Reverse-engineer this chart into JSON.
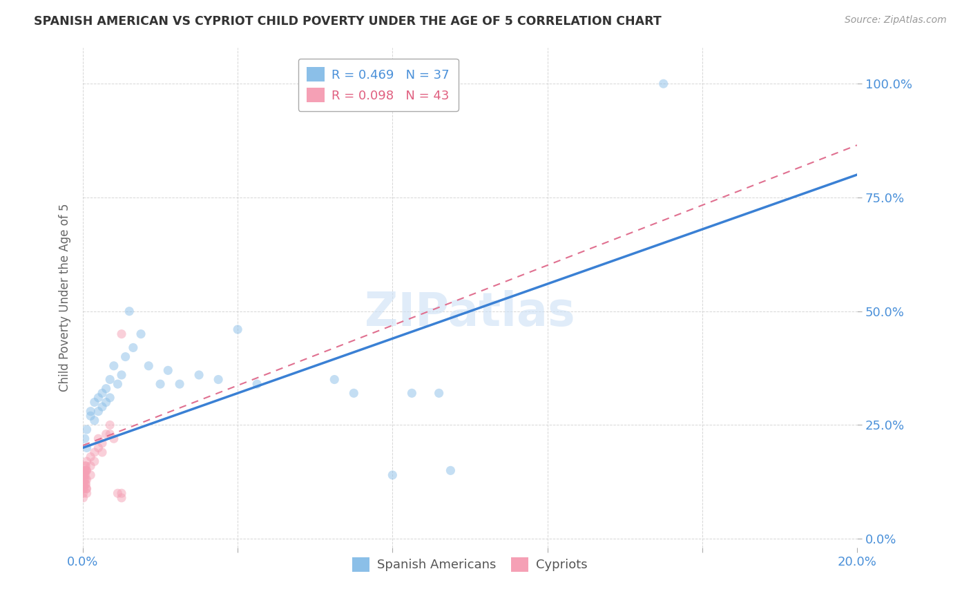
{
  "title": "SPANISH AMERICAN VS CYPRIOT CHILD POVERTY UNDER THE AGE OF 5 CORRELATION CHART",
  "source": "Source: ZipAtlas.com",
  "ylabel": "Child Poverty Under the Age of 5",
  "xlim": [
    0.0,
    0.2
  ],
  "ylim": [
    -0.02,
    1.08
  ],
  "ytick_labels": [
    "0.0%",
    "25.0%",
    "50.0%",
    "75.0%",
    "100.0%"
  ],
  "ytick_positions": [
    0.0,
    0.25,
    0.5,
    0.75,
    1.0
  ],
  "watermark": "ZIPatlas",
  "spanish_americans": {
    "x": [
      0.0005,
      0.001,
      0.001,
      0.002,
      0.002,
      0.003,
      0.003,
      0.004,
      0.004,
      0.005,
      0.005,
      0.006,
      0.006,
      0.007,
      0.007,
      0.008,
      0.009,
      0.01,
      0.011,
      0.012,
      0.013,
      0.015,
      0.017,
      0.02,
      0.022,
      0.025,
      0.03,
      0.035,
      0.04,
      0.045,
      0.065,
      0.07,
      0.08,
      0.085,
      0.092,
      0.095,
      0.15
    ],
    "y": [
      0.22,
      0.2,
      0.24,
      0.27,
      0.28,
      0.26,
      0.3,
      0.28,
      0.31,
      0.29,
      0.32,
      0.3,
      0.33,
      0.31,
      0.35,
      0.38,
      0.34,
      0.36,
      0.4,
      0.5,
      0.42,
      0.45,
      0.38,
      0.34,
      0.37,
      0.34,
      0.36,
      0.35,
      0.46,
      0.34,
      0.35,
      0.32,
      0.14,
      0.32,
      0.32,
      0.15,
      1.0
    ],
    "color": "#8bbfe8",
    "R": 0.469,
    "N": 37
  },
  "cypriots": {
    "x": [
      0.0001,
      0.0001,
      0.0001,
      0.0001,
      0.0002,
      0.0002,
      0.0002,
      0.0003,
      0.0003,
      0.0004,
      0.0004,
      0.0005,
      0.0005,
      0.0006,
      0.0006,
      0.0007,
      0.0007,
      0.0008,
      0.0008,
      0.0009,
      0.0009,
      0.001,
      0.001,
      0.001,
      0.001,
      0.001,
      0.002,
      0.002,
      0.002,
      0.003,
      0.003,
      0.004,
      0.004,
      0.005,
      0.005,
      0.006,
      0.007,
      0.007,
      0.008,
      0.009,
      0.01,
      0.01,
      0.01
    ],
    "y": [
      0.12,
      0.11,
      0.1,
      0.09,
      0.14,
      0.13,
      0.12,
      0.15,
      0.11,
      0.14,
      0.13,
      0.16,
      0.15,
      0.14,
      0.12,
      0.15,
      0.13,
      0.16,
      0.12,
      0.15,
      0.11,
      0.17,
      0.15,
      0.13,
      0.11,
      0.1,
      0.18,
      0.16,
      0.14,
      0.19,
      0.17,
      0.22,
      0.2,
      0.21,
      0.19,
      0.23,
      0.25,
      0.23,
      0.22,
      0.1,
      0.45,
      0.1,
      0.09
    ],
    "color": "#f5a0b5",
    "R": 0.098,
    "N": 43
  },
  "legend_items": [
    {
      "label": "R = 0.469   N = 37",
      "color": "#8bbfe8"
    },
    {
      "label": "R = 0.098   N = 43",
      "color": "#f5a0b5"
    }
  ],
  "blue_line": {
    "x0": 0.0,
    "y0": 0.2,
    "x1": 0.2,
    "y1": 0.8
  },
  "pink_line": {
    "x0": 0.0,
    "y0": 0.205,
    "x1": 0.2,
    "y1": 0.865
  },
  "background_color": "#ffffff",
  "grid_color": "#cccccc",
  "axis_label_color": "#666666",
  "scatter_size": 90,
  "scatter_alpha": 0.5
}
